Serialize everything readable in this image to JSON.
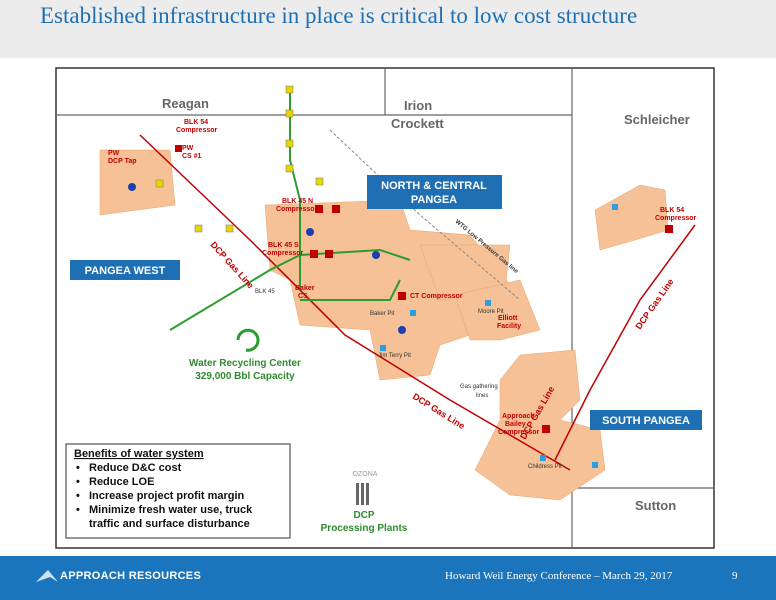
{
  "header": {
    "title": "Established infrastructure in place is critical to low cost structure"
  },
  "map": {
    "counties": [
      "Reagan",
      "Irion",
      "Crockett",
      "Schleicher",
      "Sutton"
    ],
    "regions": [
      [
        "NORTH & CENTRAL",
        "PANGEA"
      ],
      [
        "PANGEA WEST"
      ],
      [
        "SOUTH PANGEA"
      ]
    ],
    "pipelines": [
      "DCP Gas Line",
      "DCP Gas Line",
      "DCP Gas Line",
      "DCP Gas Line",
      "WTG Low Pressure Gas line"
    ],
    "facilities": [
      [
        "BLK 54",
        "Compressor"
      ],
      [
        "BLK 54",
        "Compressor"
      ],
      [
        "BLK 45 N",
        "Compressor"
      ],
      [
        "BLK 45 S",
        "Compressor"
      ],
      [
        "CT Compressor"
      ],
      [
        "Baker",
        "CS"
      ],
      [
        "Elliott",
        "Facility"
      ],
      [
        "Approach",
        "Bailey",
        "Compressor"
      ],
      [
        "PW",
        "CS #1"
      ],
      [
        "PW",
        "DCP Tap"
      ]
    ],
    "pits": [
      "Jim Terry Pit",
      "Childress Pit",
      "Moore Pit",
      "BLK 45",
      "Baker Pit"
    ],
    "gathering": [
      "Gas gathering",
      "lines"
    ],
    "water_recycling": [
      "Water Recycling Center",
      "329,000 Bbl Capacity"
    ],
    "processing": {
      "town": "OZONA",
      "label": [
        "DCP",
        "Processing Plants"
      ]
    }
  },
  "benefits": {
    "title": "Benefits of water system",
    "items": [
      "Reduce D&C cost",
      "Reduce LOE",
      "Increase project profit margin",
      "Minimize fresh water use, truck",
      "traffic and surface disturbance"
    ]
  },
  "footer": {
    "company": "APPROACH RESOURCES",
    "event": "Howard Weil Energy Conference – March 29, 2017",
    "page": "9"
  }
}
